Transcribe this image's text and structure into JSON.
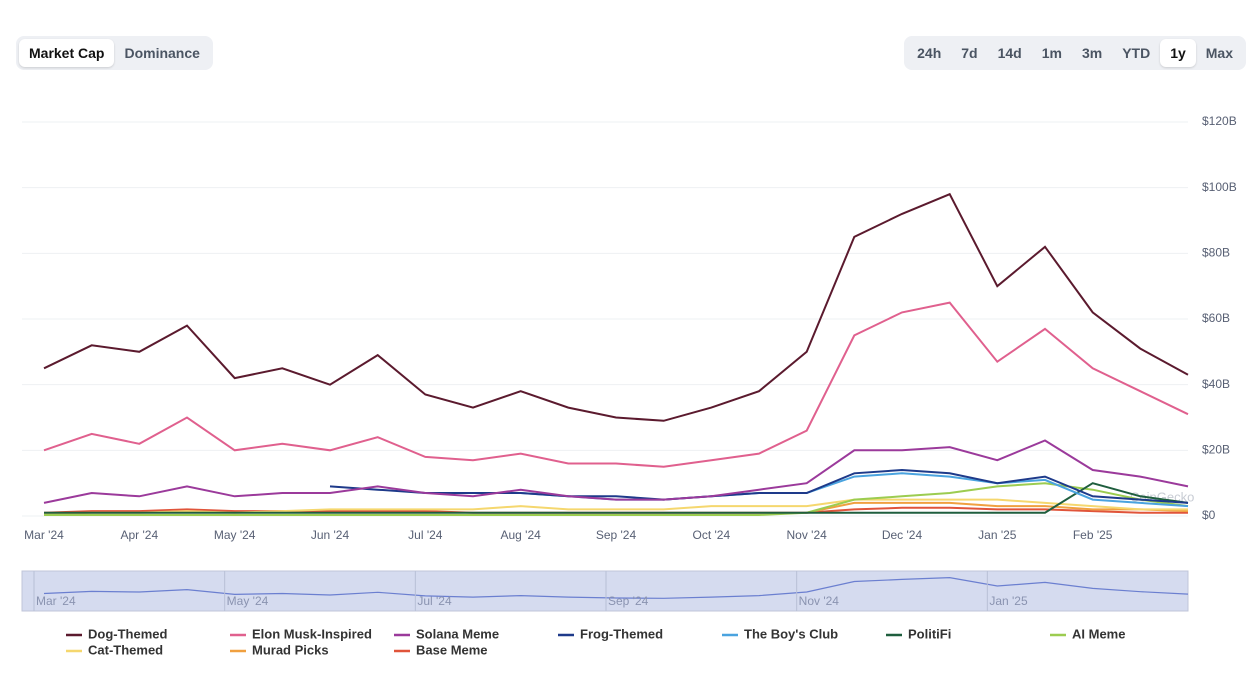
{
  "ui": {
    "view_tabs": [
      "Market Cap",
      "Dominance"
    ],
    "active_view": 0,
    "range_tabs": [
      "24h",
      "7d",
      "14d",
      "1m",
      "3m",
      "YTD",
      "1y",
      "Max"
    ],
    "active_range": 6
  },
  "chart_data": {
    "type": "line",
    "watermark": "CoinGecko",
    "categories": [
      "Mar '24",
      null,
      "Apr '24",
      null,
      "May '24",
      null,
      "Jun '24",
      null,
      "Jul '24",
      null,
      "Aug '24",
      null,
      "Sep '24",
      null,
      "Oct '24",
      null,
      "Nov '24",
      null,
      "Dec '24",
      null,
      "Jan '25",
      null,
      "Feb '25",
      null,
      null
    ],
    "ylim": [
      0,
      120
    ],
    "yticks": [
      {
        "value": 0,
        "label": "$0"
      },
      {
        "value": 20,
        "label": "$20B"
      },
      {
        "value": 40,
        "label": "$40B"
      },
      {
        "value": 60,
        "label": "$60B"
      },
      {
        "value": 80,
        "label": "$80B"
      },
      {
        "value": 100,
        "label": "$100B"
      },
      {
        "value": 120,
        "label": "$120B"
      }
    ],
    "grid": true,
    "legend": "bottom",
    "series": [
      {
        "name": "Dog-Themed",
        "color": "#5b1a2e",
        "values": [
          45,
          52,
          50,
          58,
          42,
          45,
          40,
          49,
          37,
          33,
          38,
          33,
          30,
          29,
          33,
          38,
          50,
          85,
          92,
          98,
          70,
          82,
          62,
          51,
          43
        ]
      },
      {
        "name": "Elon Musk-Inspired",
        "color": "#e0608e",
        "values": [
          20,
          25,
          22,
          30,
          20,
          22,
          20,
          24,
          18,
          17,
          19,
          16,
          16,
          15,
          17,
          19,
          26,
          55,
          62,
          65,
          47,
          57,
          45,
          38,
          31
        ]
      },
      {
        "name": "Solana Meme",
        "color": "#9b3a9b",
        "values": [
          4,
          7,
          6,
          9,
          6,
          7,
          7,
          9,
          7,
          6,
          8,
          6,
          5,
          5,
          6,
          8,
          10,
          20,
          20,
          21,
          17,
          23,
          14,
          12,
          9
        ]
      },
      {
        "name": "Frog-Themed",
        "color": "#1e3a8a",
        "values": [
          null,
          null,
          null,
          null,
          null,
          null,
          9,
          8,
          7,
          7,
          7,
          6,
          6,
          5,
          6,
          7,
          7,
          13,
          14,
          13,
          10,
          12,
          6,
          5,
          4
        ]
      },
      {
        "name": "The Boy's Club",
        "color": "#4aa3df",
        "values": [
          null,
          null,
          null,
          null,
          null,
          null,
          null,
          null,
          null,
          7,
          7,
          6,
          5,
          5,
          6,
          7,
          7,
          12,
          13,
          12,
          10,
          11,
          5,
          4,
          3
        ]
      },
      {
        "name": "PolitiFi",
        "color": "#1f5e3e",
        "values": [
          1,
          1,
          1,
          1,
          1,
          1,
          1,
          1,
          1,
          1,
          1,
          1,
          1,
          1,
          1,
          1,
          1,
          1,
          1,
          1,
          1,
          1,
          10,
          6,
          4
        ]
      },
      {
        "name": "AI Meme",
        "color": "#9ccc50",
        "values": [
          0.3,
          0.3,
          0.3,
          0.3,
          0.3,
          0.3,
          0.3,
          0.3,
          0.3,
          0.3,
          0.3,
          0.3,
          0.3,
          0.3,
          0.3,
          0.3,
          1,
          5,
          6,
          7,
          9,
          10,
          8,
          5,
          3
        ]
      },
      {
        "name": "Cat-Themed",
        "color": "#f5d76e",
        "values": [
          0.5,
          1,
          1,
          1.5,
          1,
          1.5,
          2,
          2,
          2,
          2,
          3,
          2,
          2,
          2,
          3,
          3,
          3,
          5,
          5,
          5,
          5,
          4,
          3,
          2,
          2
        ]
      },
      {
        "name": "Murad Picks",
        "color": "#f0a040",
        "values": [
          null,
          null,
          null,
          null,
          null,
          null,
          null,
          null,
          null,
          null,
          null,
          null,
          null,
          null,
          null,
          null,
          1,
          4,
          4,
          4,
          3,
          3,
          2,
          2,
          1.5
        ]
      },
      {
        "name": "Base Meme",
        "color": "#e0543a",
        "values": [
          1,
          1.5,
          1.5,
          2,
          1.5,
          1.5,
          1.5,
          1.5,
          1.5,
          1,
          1,
          1,
          1,
          1,
          1,
          1,
          1,
          2,
          2.5,
          2.5,
          2,
          2,
          1.5,
          1,
          1
        ]
      }
    ]
  }
}
